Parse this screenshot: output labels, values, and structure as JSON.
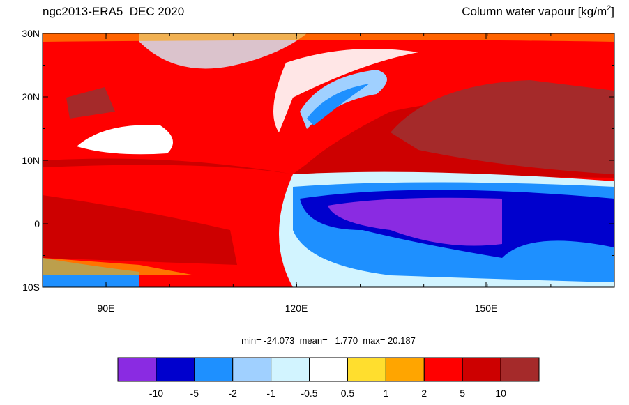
{
  "title_left": "ngc2013-ERA5  DEC 2020",
  "title_right": {
    "text": "Column water vapour [kg/m",
    "sup": "2",
    "close": "]"
  },
  "lat_ticks": [
    "30N",
    "20N",
    "10N",
    "0",
    "10S"
  ],
  "lon_ticks": [
    "90E",
    "120E",
    "150E"
  ],
  "stats": "min= -24.073  mean=   1.770  max= 20.187",
  "colorbar": {
    "colors": [
      "#8a2be2",
      "#0000cd",
      "#1e90ff",
      "#a0d0ff",
      "#d2f4ff",
      "#ffffff",
      "#ffde2e",
      "#ffa500",
      "#ff0000",
      "#cd0000",
      "#a52a2a"
    ],
    "labels": [
      "-10",
      "-5",
      "-2",
      "-1",
      "-0.5",
      "0.5",
      "1",
      "2",
      "5",
      "10"
    ]
  }
}
